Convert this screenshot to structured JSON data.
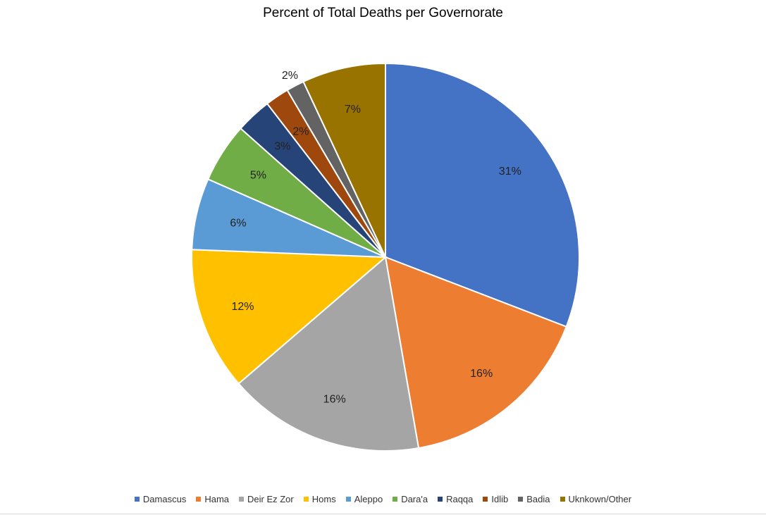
{
  "chart_data": {
    "type": "pie",
    "title": "Percent of Total Deaths per Governorate",
    "start_angle_deg": 0,
    "direction": "clockwise",
    "legend_position": "bottom",
    "slices": [
      {
        "label": "Damascus",
        "value": 31,
        "display": "31%",
        "color": "#4472C4"
      },
      {
        "label": "Hama",
        "value": 16.5,
        "display": "16%",
        "color": "#ED7D31"
      },
      {
        "label": "Deir Ez Zor",
        "value": 16.5,
        "display": "16%",
        "color": "#A5A5A5"
      },
      {
        "label": "Homs",
        "value": 12,
        "display": "12%",
        "color": "#FFC000"
      },
      {
        "label": "Aleppo",
        "value": 6,
        "display": "6%",
        "color": "#5B9BD5"
      },
      {
        "label": "Dara'a",
        "value": 5,
        "display": "5%",
        "color": "#70AD47"
      },
      {
        "label": "Raqqa",
        "value": 3,
        "display": "3%",
        "color": "#264478"
      },
      {
        "label": "Idlib",
        "value": 2,
        "display": "2%",
        "color": "#9E480E"
      },
      {
        "label": "Badia",
        "value": 1.5,
        "display": "2%",
        "color": "#636363"
      },
      {
        "label": "Uknkown/Other",
        "value": 7,
        "display": "7%",
        "color": "#997300"
      }
    ]
  }
}
